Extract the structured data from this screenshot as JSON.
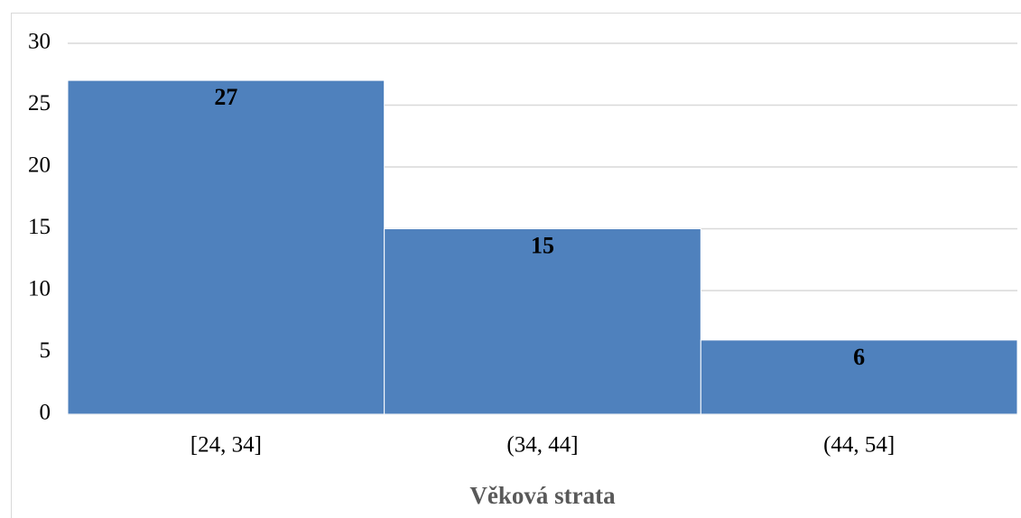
{
  "chart_data": {
    "type": "bar",
    "categories": [
      "[24, 34]",
      "(34, 44]",
      "(44, 54]"
    ],
    "values": [
      27,
      15,
      6
    ],
    "color": "#4f81bd",
    "xlabel": "Věková strata",
    "ylim": [
      0,
      30
    ],
    "yticks": [
      0,
      5,
      10,
      15,
      20,
      25,
      30
    ],
    "grid": true,
    "data_labels": true
  }
}
